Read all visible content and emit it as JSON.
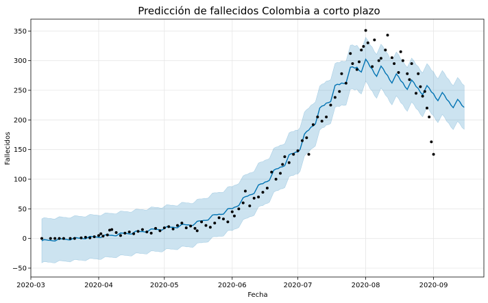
{
  "chart_data": {
    "type": "line",
    "title": "Predicción de fallecidos Colombia a corto plazo",
    "xlabel": "Fecha",
    "ylabel": "Fallecidos",
    "x_start": "2020-03-06",
    "ylim": [
      -65,
      370
    ],
    "xlim": [
      "2020-03-01",
      "2020-09-24"
    ],
    "grid": true,
    "colors": {
      "forecast": "#0072b2",
      "band": "#0072b2",
      "observed": "#000000"
    },
    "x_ticks": [
      {
        "date": "2020-03-01",
        "label": "2020-03"
      },
      {
        "date": "2020-04-01",
        "label": "2020-04"
      },
      {
        "date": "2020-05-01",
        "label": "2020-05"
      },
      {
        "date": "2020-06-01",
        "label": "2020-06"
      },
      {
        "date": "2020-07-01",
        "label": "2020-07"
      },
      {
        "date": "2020-08-01",
        "label": "2020-08"
      },
      {
        "date": "2020-09-01",
        "label": "2020-09"
      }
    ],
    "y_ticks": [
      {
        "value": -50,
        "label": "−50"
      },
      {
        "value": 0,
        "label": "0"
      },
      {
        "value": 50,
        "label": "50"
      },
      {
        "value": 100,
        "label": "100"
      },
      {
        "value": 150,
        "label": "150"
      },
      {
        "value": 200,
        "label": "200"
      },
      {
        "value": 250,
        "label": "250"
      },
      {
        "value": 300,
        "label": "300"
      },
      {
        "value": 350,
        "label": "350"
      }
    ],
    "forecast_anchors": [
      [
        "2020-03-06",
        -4
      ],
      [
        "2020-03-14",
        -2
      ],
      [
        "2020-03-22",
        0
      ],
      [
        "2020-04-01",
        3
      ],
      [
        "2020-04-15",
        9
      ],
      [
        "2020-05-01",
        17
      ],
      [
        "2020-05-15",
        25
      ],
      [
        "2020-06-01",
        50
      ],
      [
        "2020-06-15",
        92
      ],
      [
        "2020-07-01",
        150
      ],
      [
        "2020-07-08",
        195
      ],
      [
        "2020-07-15",
        235
      ],
      [
        "2020-07-22",
        268
      ],
      [
        "2020-07-28",
        290
      ],
      [
        "2020-08-01",
        292
      ],
      [
        "2020-08-05",
        285
      ],
      [
        "2020-08-10",
        278
      ],
      [
        "2020-08-15",
        268
      ],
      [
        "2020-08-22",
        258
      ],
      [
        "2020-09-01",
        245
      ],
      [
        "2020-09-08",
        232
      ],
      [
        "2020-09-15",
        222
      ]
    ],
    "band_halfwidth": 37,
    "observed": [
      [
        "2020-03-06",
        0
      ],
      [
        "2020-03-10",
        0
      ],
      [
        "2020-03-12",
        0
      ],
      [
        "2020-03-14",
        0
      ],
      [
        "2020-03-16",
        0
      ],
      [
        "2020-03-19",
        0
      ],
      [
        "2020-03-21",
        0
      ],
      [
        "2020-03-24",
        1
      ],
      [
        "2020-03-26",
        2
      ],
      [
        "2020-03-28",
        1
      ],
      [
        "2020-03-30",
        3
      ],
      [
        "2020-04-01",
        5
      ],
      [
        "2020-04-02",
        8
      ],
      [
        "2020-04-03",
        4
      ],
      [
        "2020-04-05",
        6
      ],
      [
        "2020-04-06",
        14
      ],
      [
        "2020-04-07",
        15
      ],
      [
        "2020-04-09",
        10
      ],
      [
        "2020-04-11",
        5
      ],
      [
        "2020-04-13",
        9
      ],
      [
        "2020-04-15",
        11
      ],
      [
        "2020-04-17",
        8
      ],
      [
        "2020-04-19",
        12
      ],
      [
        "2020-04-21",
        15
      ],
      [
        "2020-04-23",
        11
      ],
      [
        "2020-04-25",
        9
      ],
      [
        "2020-04-27",
        17
      ],
      [
        "2020-04-29",
        13
      ],
      [
        "2020-05-01",
        18
      ],
      [
        "2020-05-03",
        20
      ],
      [
        "2020-05-05",
        16
      ],
      [
        "2020-05-07",
        22
      ],
      [
        "2020-05-09",
        26
      ],
      [
        "2020-05-11",
        18
      ],
      [
        "2020-05-13",
        21
      ],
      [
        "2020-05-15",
        17
      ],
      [
        "2020-05-16",
        13
      ],
      [
        "2020-05-18",
        28
      ],
      [
        "2020-05-20",
        22
      ],
      [
        "2020-05-22",
        19
      ],
      [
        "2020-05-24",
        26
      ],
      [
        "2020-05-26",
        35
      ],
      [
        "2020-05-28",
        33
      ],
      [
        "2020-05-30",
        28
      ],
      [
        "2020-06-01",
        45
      ],
      [
        "2020-06-02",
        38
      ],
      [
        "2020-06-04",
        50
      ],
      [
        "2020-06-06",
        60
      ],
      [
        "2020-06-07",
        80
      ],
      [
        "2020-06-09",
        55
      ],
      [
        "2020-06-11",
        68
      ],
      [
        "2020-06-13",
        70
      ],
      [
        "2020-06-15",
        78
      ],
      [
        "2020-06-17",
        85
      ],
      [
        "2020-06-19",
        112
      ],
      [
        "2020-06-21",
        100
      ],
      [
        "2020-06-23",
        110
      ],
      [
        "2020-06-24",
        125
      ],
      [
        "2020-06-25",
        138
      ],
      [
        "2020-06-27",
        128
      ],
      [
        "2020-06-29",
        142
      ],
      [
        "2020-07-01",
        148
      ],
      [
        "2020-07-03",
        165
      ],
      [
        "2020-07-05",
        170
      ],
      [
        "2020-07-06",
        142
      ],
      [
        "2020-07-08",
        192
      ],
      [
        "2020-07-10",
        205
      ],
      [
        "2020-07-12",
        198
      ],
      [
        "2020-07-14",
        205
      ],
      [
        "2020-07-16",
        225
      ],
      [
        "2020-07-18",
        238
      ],
      [
        "2020-07-20",
        248
      ],
      [
        "2020-07-21",
        278
      ],
      [
        "2020-07-23",
        262
      ],
      [
        "2020-07-25",
        312
      ],
      [
        "2020-07-26",
        295
      ],
      [
        "2020-07-28",
        285
      ],
      [
        "2020-07-29",
        298
      ],
      [
        "2020-07-30",
        318
      ],
      [
        "2020-07-31",
        324
      ],
      [
        "2020-08-01",
        351
      ],
      [
        "2020-08-02",
        330
      ],
      [
        "2020-08-04",
        290
      ],
      [
        "2020-08-05",
        335
      ],
      [
        "2020-08-07",
        300
      ],
      [
        "2020-08-08",
        304
      ],
      [
        "2020-08-10",
        318
      ],
      [
        "2020-08-11",
        343
      ],
      [
        "2020-08-13",
        305
      ],
      [
        "2020-08-14",
        295
      ],
      [
        "2020-08-16",
        280
      ],
      [
        "2020-08-17",
        315
      ],
      [
        "2020-08-18",
        300
      ],
      [
        "2020-08-20",
        278
      ],
      [
        "2020-08-21",
        268
      ],
      [
        "2020-08-22",
        295
      ],
      [
        "2020-08-24",
        245
      ],
      [
        "2020-08-25",
        278
      ],
      [
        "2020-08-26",
        256
      ],
      [
        "2020-08-27",
        240
      ],
      [
        "2020-08-28",
        248
      ],
      [
        "2020-08-29",
        220
      ],
      [
        "2020-08-30",
        205
      ],
      [
        "2020-08-31",
        163
      ],
      [
        "2020-09-01",
        142
      ]
    ]
  }
}
